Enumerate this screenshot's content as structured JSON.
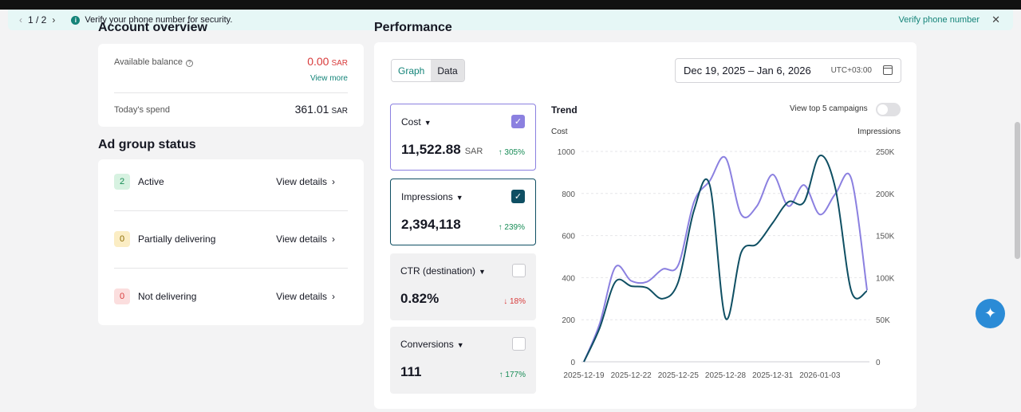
{
  "notice": {
    "pager": "1 / 2",
    "message": "Verify your phone number for security.",
    "action": "Verify phone number"
  },
  "account": {
    "title": "Account overview",
    "balance_label": "Available balance",
    "balance_value": "0.00",
    "balance_unit": "SAR",
    "view_more": "View more",
    "spend_label": "Today's spend",
    "spend_value": "361.01",
    "spend_unit": "SAR"
  },
  "adgroup": {
    "title": "Ad group status",
    "rows": [
      {
        "count": "2",
        "label": "Active",
        "action": "View details"
      },
      {
        "count": "0",
        "label": "Partially delivering",
        "action": "View details"
      },
      {
        "count": "0",
        "label": "Not delivering",
        "action": "View details"
      }
    ]
  },
  "performance": {
    "title": "Performance",
    "tabs": [
      "Graph",
      "Data"
    ],
    "date_range": "Dec 19, 2025 – Jan 6, 2026",
    "timezone": "UTC+03:00",
    "metrics": [
      {
        "name": "Cost",
        "value": "11,522.88",
        "unit": "SAR",
        "change": "305%",
        "direction": "up",
        "checked": true
      },
      {
        "name": "Impressions",
        "value": "2,394,118",
        "unit": "",
        "change": "239%",
        "direction": "up",
        "checked": true
      },
      {
        "name": "CTR (destination)",
        "value": "0.82%",
        "unit": "",
        "change": "18%",
        "direction": "down",
        "checked": false
      },
      {
        "name": "Conversions",
        "value": "111",
        "unit": "",
        "change": "177%",
        "direction": "up",
        "checked": false
      }
    ],
    "trend_title": "Trend",
    "top5_label": "View top 5 campaigns"
  },
  "colors": {
    "accent": "#148479",
    "cost_series": "#8b80e0",
    "impressions_series": "#0f4f63"
  },
  "chart_data": {
    "type": "line",
    "ylabel": "Cost",
    "y2label": "Impressions",
    "ylim": [
      0,
      1000
    ],
    "y2lim": [
      0,
      250000
    ],
    "yticks": [
      "0",
      "200",
      "400",
      "600",
      "800",
      "1000"
    ],
    "y2ticks": [
      "0",
      "50K",
      "100K",
      "150K",
      "200K",
      "250K"
    ],
    "xticks": [
      "2025-12-19",
      "2025-12-22",
      "2025-12-25",
      "2025-12-28",
      "2025-12-31",
      "2026-01-03"
    ],
    "x": [
      "2025-12-19",
      "2025-12-20",
      "2025-12-21",
      "2025-12-22",
      "2025-12-23",
      "2025-12-24",
      "2025-12-25",
      "2025-12-26",
      "2025-12-27",
      "2025-12-28",
      "2025-12-29",
      "2025-12-30",
      "2025-12-31",
      "2026-01-01",
      "2026-01-02",
      "2026-01-03",
      "2026-01-04",
      "2026-01-05",
      "2026-01-06"
    ],
    "grid": true,
    "series": [
      {
        "name": "Cost",
        "axis": "left",
        "values": [
          0,
          180,
          450,
          385,
          380,
          440,
          460,
          760,
          860,
          970,
          700,
          740,
          890,
          740,
          840,
          700,
          800,
          870,
          340
        ]
      },
      {
        "name": "Impressions",
        "axis": "right",
        "values": [
          0,
          40000,
          95000,
          90000,
          88000,
          75000,
          95000,
          180000,
          210000,
          52000,
          130000,
          140000,
          165000,
          190000,
          190000,
          245000,
          205000,
          84000,
          84000
        ]
      }
    ]
  }
}
